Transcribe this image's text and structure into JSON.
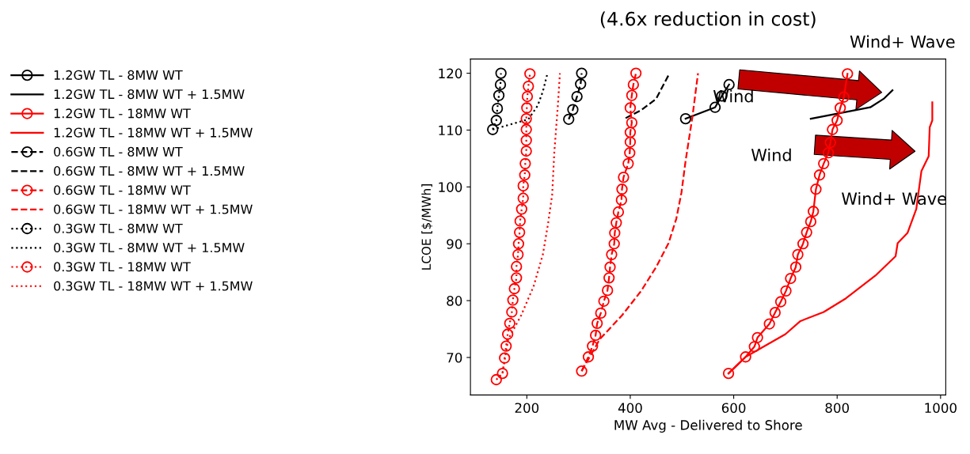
{
  "chart_data": {
    "type": "line",
    "title": "(4.6x reduction in cost)",
    "xlabel": "MW Avg - Delivered to Shore",
    "ylabel": "LCOE [$/MWh]",
    "xlim": [
      91,
      1010
    ],
    "ylim": [
      63.4,
      122.5
    ],
    "xticks": [
      200,
      400,
      600,
      800,
      1000
    ],
    "yticks": [
      70,
      80,
      90,
      100,
      110,
      120
    ],
    "grid": false,
    "legend": "left",
    "annotations": [
      "Wind+ Wave",
      "Wind",
      "Wind",
      "Wind+ Wave"
    ],
    "series": [
      {
        "name": "1.2GW TL - 8MW WT",
        "color": "#000000",
        "marker": "circle",
        "line_style": "solid",
        "x": [
          507,
          564,
          577,
          591
        ],
        "values": [
          112,
          114,
          116,
          118
        ]
      },
      {
        "name": "1.2GW TL - 8MW WT + 1.5MW",
        "color": "#000000",
        "line_style": "solid",
        "x": [
          749,
          864,
          890,
          907
        ],
        "values": [
          112,
          114,
          115.5,
          117
        ]
      },
      {
        "name": "1.2GW TL - 18MW WT",
        "color": "#ff0000",
        "marker": "circle",
        "line_style": "solid",
        "x": [
          590,
          623,
          640,
          646,
          669,
          680,
          691,
          701,
          710,
          720,
          724,
          734,
          741,
          749,
          754,
          759,
          766,
          774,
          783,
          787,
          791,
          800,
          806,
          813,
          820
        ],
        "values": [
          67.2,
          70.1,
          71.9,
          73.5,
          75.9,
          77.9,
          79.8,
          81.7,
          83.9,
          85.9,
          88.1,
          90.0,
          92.0,
          93.9,
          95.7,
          99.6,
          102.1,
          104.1,
          106.0,
          107.8,
          110.1,
          111.7,
          113.9,
          115.8,
          119.9
        ]
      },
      {
        "name": "1.2GW TL - 18MW WT + 1.5MW",
        "color": "#ff0000",
        "line_style": "solid",
        "x": [
          590,
          623,
          700,
          729,
          774,
          817,
          874,
          913,
          917,
          936,
          953,
          963,
          977,
          979,
          984,
          984
        ],
        "values": [
          67.2,
          70.1,
          74.1,
          76.4,
          78.0,
          80.4,
          84.4,
          87.8,
          90.1,
          91.9,
          96.1,
          102.8,
          105.4,
          110.5,
          111.7,
          114.9
        ]
      },
      {
        "name": "0.6GW TL - 8MW WT",
        "color": "#000000",
        "marker": "circle",
        "line_style": "dashed",
        "x": [
          281,
          289,
          297,
          304,
          306
        ],
        "values": [
          111.9,
          113.6,
          115.9,
          118.1,
          120
        ]
      },
      {
        "name": "0.6GW TL - 8MW WT + 1.5MW",
        "color": "#000000",
        "line_style": "dashed",
        "x": [
          391,
          421,
          450,
          476
        ],
        "values": [
          112.1,
          113.5,
          115.5,
          120
        ]
      },
      {
        "name": "0.6GW TL - 18MW WT",
        "color": "#ff0000",
        "marker": "circle",
        "line_style": "dashed",
        "x": [
          306,
          319,
          327,
          333,
          336,
          343,
          349,
          356,
          359,
          361,
          364,
          369,
          370,
          373,
          377,
          383,
          384,
          387,
          396,
          399,
          400,
          400,
          403,
          400,
          403,
          406,
          411
        ],
        "values": [
          67.6,
          70.1,
          72.0,
          73.9,
          76.0,
          77.8,
          79.9,
          81.8,
          84.0,
          85.9,
          88.1,
          90.0,
          91.9,
          93.7,
          95.6,
          97.7,
          99.6,
          101.7,
          104.1,
          106.0,
          107.9,
          109.6,
          111.3,
          113.9,
          116.1,
          118.0,
          120
        ]
      },
      {
        "name": "0.6GW TL - 18MW WT + 1.5MW",
        "color": "#ff0000",
        "line_style": "dashed",
        "x": [
          306,
          341,
          384,
          421,
          450,
          474,
          489,
          499,
          507,
          520,
          531
        ],
        "values": [
          67.6,
          73.2,
          77.4,
          81.7,
          85.9,
          90.1,
          94.4,
          99.0,
          104.6,
          112.2,
          120
        ]
      },
      {
        "name": "0.3GW TL - 8MW WT",
        "color": "#000000",
        "marker": "circle",
        "line_style": "dotted",
        "x": [
          134,
          141,
          143,
          146,
          149,
          150
        ],
        "values": [
          110.1,
          111.7,
          113.8,
          116.1,
          118,
          120
        ]
      },
      {
        "name": "0.3GW TL - 8MW WT + 1.5MW",
        "color": "#000000",
        "line_style": "dotted",
        "x": [
          134,
          203,
          221,
          231,
          240
        ],
        "values": [
          110.1,
          111.9,
          114.3,
          116.8,
          120
        ]
      },
      {
        "name": "0.3GW TL - 18MW WT",
        "color": "#ff0000",
        "marker": "circle",
        "line_style": "dotted",
        "x": [
          141,
          153,
          157,
          160,
          163,
          167,
          171,
          173,
          176,
          180,
          180,
          183,
          184,
          186,
          187,
          190,
          193,
          193,
          196,
          197,
          199,
          199,
          199,
          199,
          200,
          201,
          203,
          206
        ],
        "values": [
          66.1,
          67.2,
          69.9,
          72.0,
          74.1,
          76.0,
          78.0,
          80.1,
          82.1,
          84.0,
          86.0,
          88.1,
          90.0,
          92.0,
          94.0,
          96.1,
          98.0,
          100.2,
          102.1,
          104.1,
          106.3,
          108.2,
          110.1,
          112.0,
          113.9,
          115.9,
          117.7,
          119.9
        ]
      },
      {
        "name": "0.3GW TL - 18MW WT + 1.5MW",
        "color": "#ff0000",
        "line_style": "dotted",
        "x": [
          153,
          164,
          189,
          213,
          231,
          241,
          249,
          253,
          260,
          264
        ],
        "values": [
          67.2,
          73.2,
          77.4,
          82.5,
          88.1,
          93.5,
          98.6,
          105.9,
          114.3,
          120
        ]
      }
    ]
  }
}
